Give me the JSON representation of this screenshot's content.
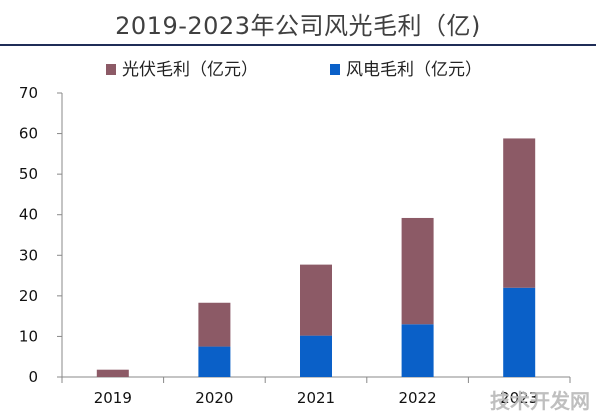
{
  "title": "2019-2023年公司风光毛利（亿)",
  "watermark": "技术开发网",
  "chart_data": {
    "type": "bar",
    "stacked": true,
    "categories": [
      "2019",
      "2020",
      "2021",
      "2022",
      "2023"
    ],
    "series": [
      {
        "name": "风电毛利（亿元）",
        "color": "#0a60c8",
        "values": [
          0,
          7.5,
          10.2,
          13.0,
          22.0
        ]
      },
      {
        "name": "光伏毛利（亿元）",
        "color": "#8c5a66",
        "values": [
          1.8,
          10.8,
          17.5,
          26.2,
          36.8
        ]
      }
    ],
    "ylim": [
      0,
      70
    ],
    "yticks": [
      0,
      10,
      20,
      30,
      40,
      50,
      60,
      70
    ],
    "legend_position": "top",
    "grid": false
  }
}
